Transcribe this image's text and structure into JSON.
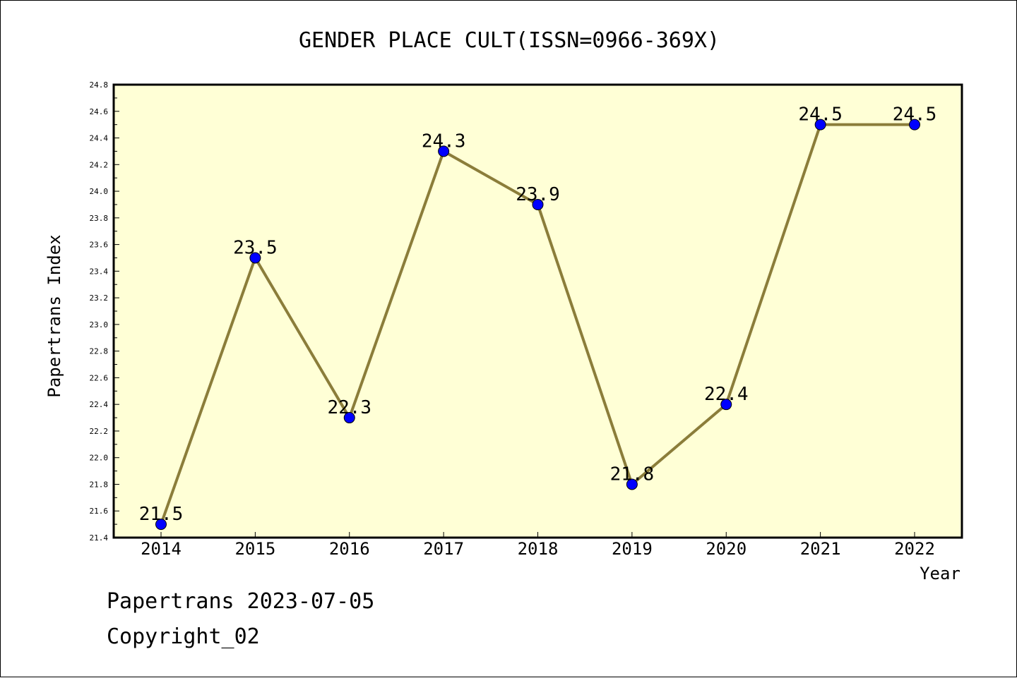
{
  "chart_data": {
    "type": "line",
    "title": "GENDER PLACE CULT(ISSN=0966-369X)",
    "xlabel": "Year",
    "ylabel": "Papertrans Index",
    "categories": [
      "2014",
      "2015",
      "2016",
      "2017",
      "2018",
      "2019",
      "2020",
      "2021",
      "2022"
    ],
    "series": [
      {
        "values": [
          21.5,
          23.5,
          22.3,
          24.3,
          23.9,
          21.8,
          22.4,
          24.5,
          24.5
        ]
      }
    ],
    "data_labels": [
      "21.5",
      "23.5",
      "22.3",
      "24.3",
      "23.9",
      "21.8",
      "22.4",
      "24.5",
      "24.5"
    ],
    "ylim": [
      21.4,
      24.8
    ],
    "yticks": [
      "21.4",
      "21.6",
      "21.8",
      "22.0",
      "22.2",
      "22.4",
      "22.6",
      "22.8",
      "23.0",
      "23.2",
      "23.4",
      "23.6",
      "23.8",
      "24.0",
      "24.2",
      "24.4",
      "24.6",
      "24.8"
    ],
    "grid": false,
    "colors": {
      "plot_background": "#ffffd6",
      "line": "#8b7d3a",
      "marker": "#0000ff"
    }
  },
  "footer": {
    "line1": "Papertrans 2023-07-05",
    "line2": "Copyright_02"
  }
}
